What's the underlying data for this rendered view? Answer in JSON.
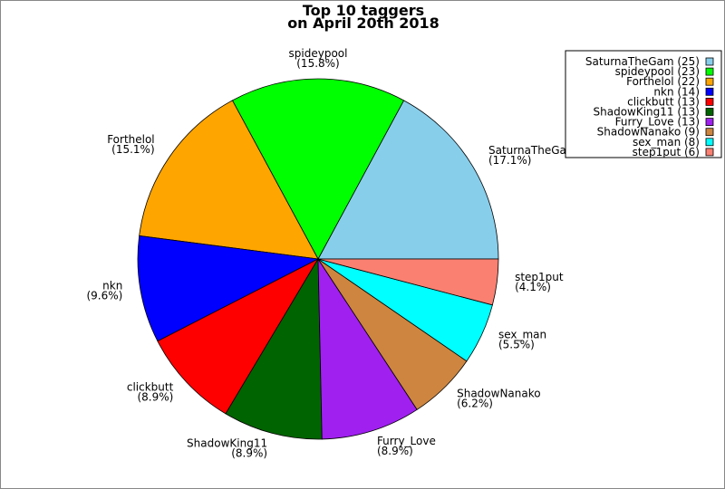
{
  "chart_data": {
    "type": "pie",
    "title": [
      "Top 10 taggers",
      "on April 20th 2018"
    ],
    "categories": [
      "SaturnaTheGam",
      "spideypool",
      "Forthelol",
      "nkn",
      "clickbutt",
      "ShadowKing11",
      "Furry_Love",
      "ShadowNanako",
      "sex_man",
      "step1put"
    ],
    "values": [
      25,
      23,
      22,
      14,
      13,
      13,
      13,
      9,
      8,
      6
    ],
    "percent_labels": [
      "(17.1%)",
      "(15.8%)",
      "(15.1%)",
      "(9.6%)",
      "(8.9%)",
      "(8.9%)",
      "(8.9%)",
      "(6.2%)",
      "(5.5%)",
      "(4.1%)"
    ],
    "legend_labels": [
      "SaturnaTheGam (25)",
      "spideypool (23)",
      "Forthelol (22)",
      "nkn (14)",
      "clickbutt (13)",
      "ShadowKing11 (13)",
      "Furry_Love (13)",
      "ShadowNanako (9)",
      "sex_man (8)",
      "step1put (6)"
    ],
    "colors": [
      "#87ceeb",
      "#00ff00",
      "#ffa500",
      "#0000ff",
      "#ff0000",
      "#006400",
      "#a020f0",
      "#cd853f",
      "#00ffff",
      "#fa8072"
    ],
    "start_angle_deg": 0,
    "direction": "counterclockwise",
    "legend_position": "top-right"
  }
}
